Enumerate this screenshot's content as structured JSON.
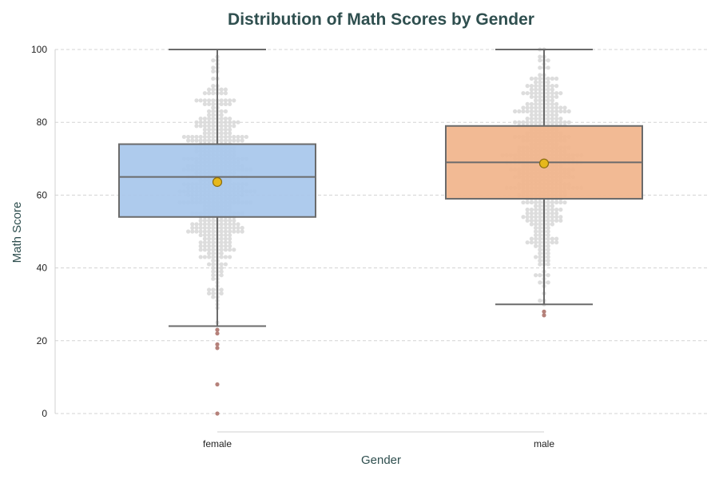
{
  "chart_data": {
    "type": "box",
    "title": "Distribution of Math Scores by Gender",
    "xlabel": "Gender",
    "ylabel": "Math Score",
    "ylim": [
      -5,
      101
    ],
    "yticks": [
      0,
      20,
      40,
      60,
      80,
      100
    ],
    "grid": "y-dashed",
    "categories": [
      "female",
      "male"
    ],
    "boxes": [
      {
        "category": "female",
        "color": "#a7c7ec",
        "q1": 54,
        "median": 65,
        "q3": 74,
        "whisker_low": 24,
        "whisker_high": 100,
        "mean": 63.6,
        "outliers": [
          23,
          22,
          19,
          18,
          8,
          0
        ]
      },
      {
        "category": "male",
        "color": "#f1b48b",
        "q1": 59,
        "median": 69,
        "q3": 79,
        "whisker_low": 30,
        "whisker_high": 100,
        "mean": 68.7,
        "outliers": [
          28,
          27
        ]
      }
    ],
    "colors": {
      "box_edge": "#6b6b6b",
      "swarm_points": "#d9d9d9",
      "outlier_points": "#b5817a",
      "mean_marker": "#e6b81c",
      "grid": "#d3d3d3"
    }
  }
}
